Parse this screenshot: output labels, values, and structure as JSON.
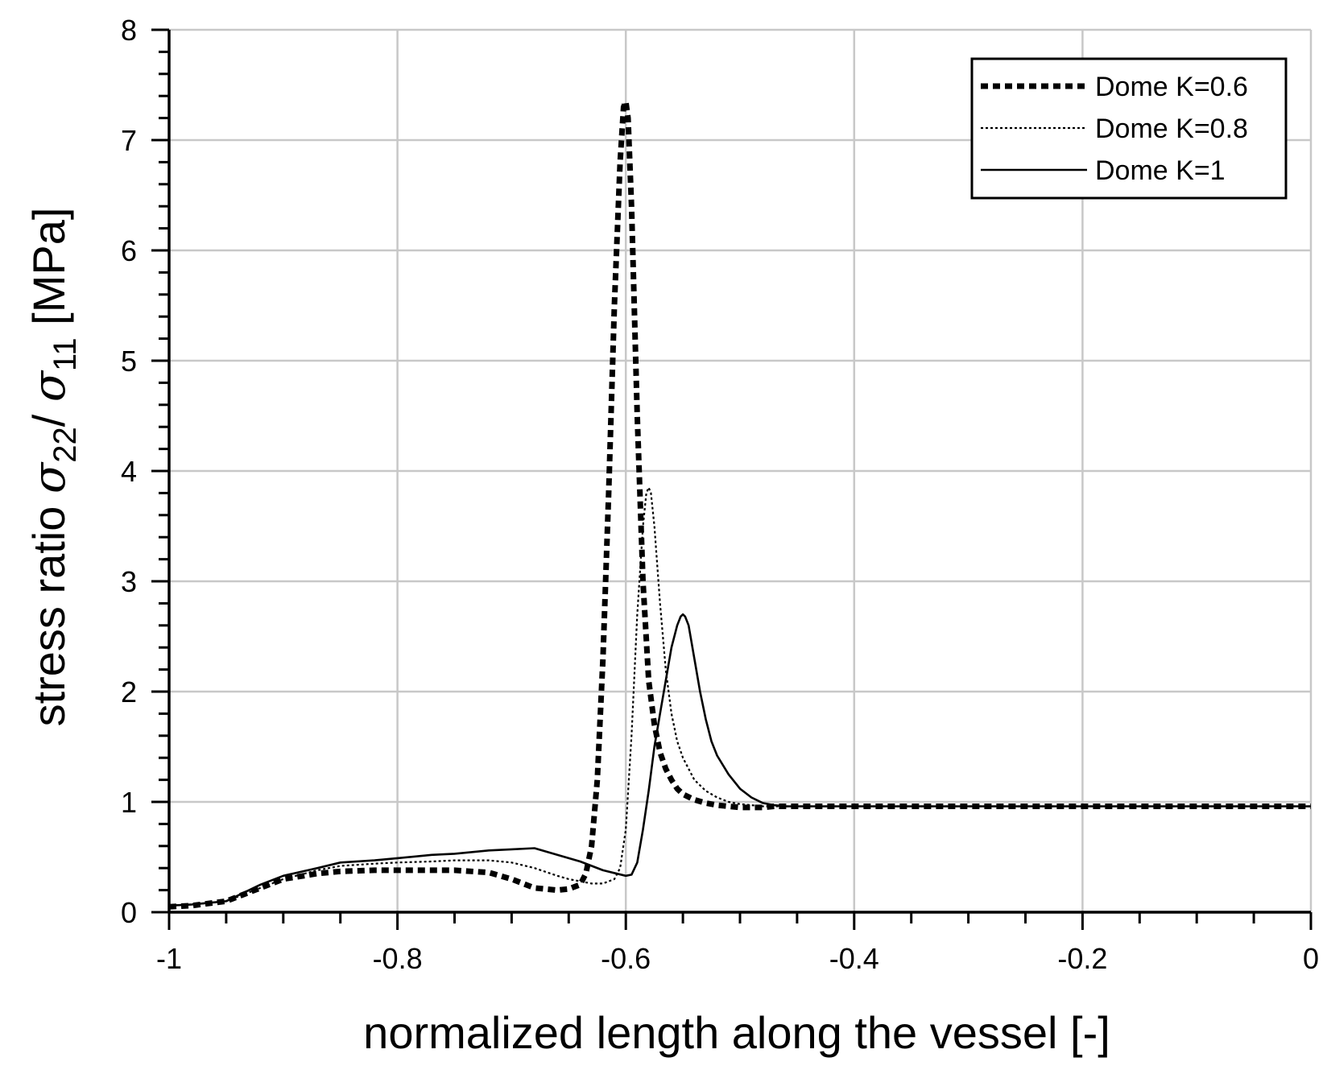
{
  "chart_data": {
    "type": "line",
    "title": "",
    "xlabel": "normalized length along the vessel [-]",
    "ylabel": {
      "prefix": "stress ratio ",
      "sigma": "σ",
      "sub1": "22",
      "slash": "/ ",
      "sub2": "11",
      "suffix": " [MPa]"
    },
    "xlim": [
      -1,
      0
    ],
    "ylim": [
      0,
      8
    ],
    "xticks": [
      -1,
      -0.8,
      -0.6,
      -0.4,
      -0.2,
      0
    ],
    "xtick_labels": [
      "-1",
      "-0.8",
      "-0.6",
      "-0.4",
      "-0.2",
      "0"
    ],
    "yticks": [
      0,
      1,
      2,
      3,
      4,
      5,
      6,
      7,
      8
    ],
    "ytick_labels": [
      "0",
      "1",
      "2",
      "3",
      "4",
      "5",
      "6",
      "7",
      "8"
    ],
    "grid": true,
    "legend_position": "top-right",
    "series": [
      {
        "name": "Dome K=0.6",
        "style": "dashed-thick",
        "color": "#000000",
        "x": [
          -1,
          -0.98,
          -0.95,
          -0.92,
          -0.9,
          -0.87,
          -0.85,
          -0.82,
          -0.8,
          -0.77,
          -0.75,
          -0.72,
          -0.7,
          -0.68,
          -0.66,
          -0.65,
          -0.64,
          -0.635,
          -0.63,
          -0.625,
          -0.62,
          -0.615,
          -0.61,
          -0.605,
          -0.602,
          -0.6,
          -0.598,
          -0.595,
          -0.59,
          -0.585,
          -0.58,
          -0.575,
          -0.57,
          -0.565,
          -0.56,
          -0.555,
          -0.55,
          -0.54,
          -0.53,
          -0.52,
          -0.51,
          -0.5,
          -0.49,
          -0.48,
          -0.47,
          -0.45,
          -0.4,
          -0.3,
          -0.2,
          -0.1,
          0
        ],
        "y": [
          0.05,
          0.06,
          0.1,
          0.22,
          0.3,
          0.35,
          0.37,
          0.38,
          0.38,
          0.38,
          0.38,
          0.36,
          0.3,
          0.22,
          0.2,
          0.21,
          0.25,
          0.35,
          0.6,
          1.2,
          2.3,
          3.8,
          5.5,
          6.8,
          7.3,
          7.35,
          7.2,
          6.4,
          4.5,
          3.0,
          2.1,
          1.7,
          1.45,
          1.3,
          1.2,
          1.12,
          1.07,
          1.02,
          0.99,
          0.97,
          0.96,
          0.95,
          0.95,
          0.95,
          0.96,
          0.96,
          0.96,
          0.96,
          0.96,
          0.96,
          0.96
        ]
      },
      {
        "name": "Dome K=0.8",
        "style": "dotted-thin",
        "color": "#000000",
        "x": [
          -1,
          -0.98,
          -0.95,
          -0.92,
          -0.9,
          -0.87,
          -0.85,
          -0.82,
          -0.8,
          -0.77,
          -0.75,
          -0.72,
          -0.7,
          -0.68,
          -0.66,
          -0.65,
          -0.64,
          -0.63,
          -0.62,
          -0.61,
          -0.605,
          -0.6,
          -0.595,
          -0.59,
          -0.585,
          -0.582,
          -0.58,
          -0.578,
          -0.575,
          -0.57,
          -0.565,
          -0.56,
          -0.555,
          -0.55,
          -0.545,
          -0.54,
          -0.53,
          -0.52,
          -0.51,
          -0.5,
          -0.49,
          -0.48,
          -0.47,
          -0.45,
          -0.4,
          -0.3,
          -0.2,
          -0.1,
          0
        ],
        "y": [
          0.06,
          0.07,
          0.1,
          0.22,
          0.3,
          0.38,
          0.42,
          0.44,
          0.45,
          0.46,
          0.47,
          0.47,
          0.45,
          0.4,
          0.33,
          0.3,
          0.28,
          0.26,
          0.26,
          0.3,
          0.4,
          0.75,
          1.6,
          2.7,
          3.5,
          3.8,
          3.85,
          3.8,
          3.5,
          2.8,
          2.2,
          1.8,
          1.55,
          1.4,
          1.3,
          1.2,
          1.1,
          1.04,
          1.0,
          0.98,
          0.97,
          0.96,
          0.96,
          0.96,
          0.96,
          0.96,
          0.96,
          0.96,
          0.96
        ]
      },
      {
        "name": "Dome K=1",
        "style": "solid",
        "color": "#000000",
        "x": [
          -1,
          -0.98,
          -0.95,
          -0.92,
          -0.9,
          -0.87,
          -0.85,
          -0.82,
          -0.8,
          -0.77,
          -0.75,
          -0.72,
          -0.7,
          -0.68,
          -0.66,
          -0.64,
          -0.62,
          -0.6,
          -0.595,
          -0.59,
          -0.585,
          -0.58,
          -0.575,
          -0.57,
          -0.565,
          -0.56,
          -0.555,
          -0.552,
          -0.55,
          -0.548,
          -0.545,
          -0.54,
          -0.535,
          -0.53,
          -0.525,
          -0.52,
          -0.51,
          -0.5,
          -0.49,
          -0.48,
          -0.47,
          -0.46,
          -0.45,
          -0.4,
          -0.3,
          -0.2,
          -0.1,
          0
        ],
        "y": [
          0.06,
          0.07,
          0.1,
          0.25,
          0.33,
          0.4,
          0.45,
          0.47,
          0.49,
          0.52,
          0.53,
          0.56,
          0.57,
          0.58,
          0.52,
          0.46,
          0.38,
          0.33,
          0.34,
          0.45,
          0.75,
          1.1,
          1.5,
          1.8,
          2.1,
          2.4,
          2.6,
          2.68,
          2.7,
          2.68,
          2.6,
          2.3,
          2.0,
          1.75,
          1.55,
          1.42,
          1.25,
          1.12,
          1.04,
          0.99,
          0.97,
          0.96,
          0.96,
          0.96,
          0.96,
          0.96,
          0.96,
          0.96
        ]
      }
    ]
  }
}
